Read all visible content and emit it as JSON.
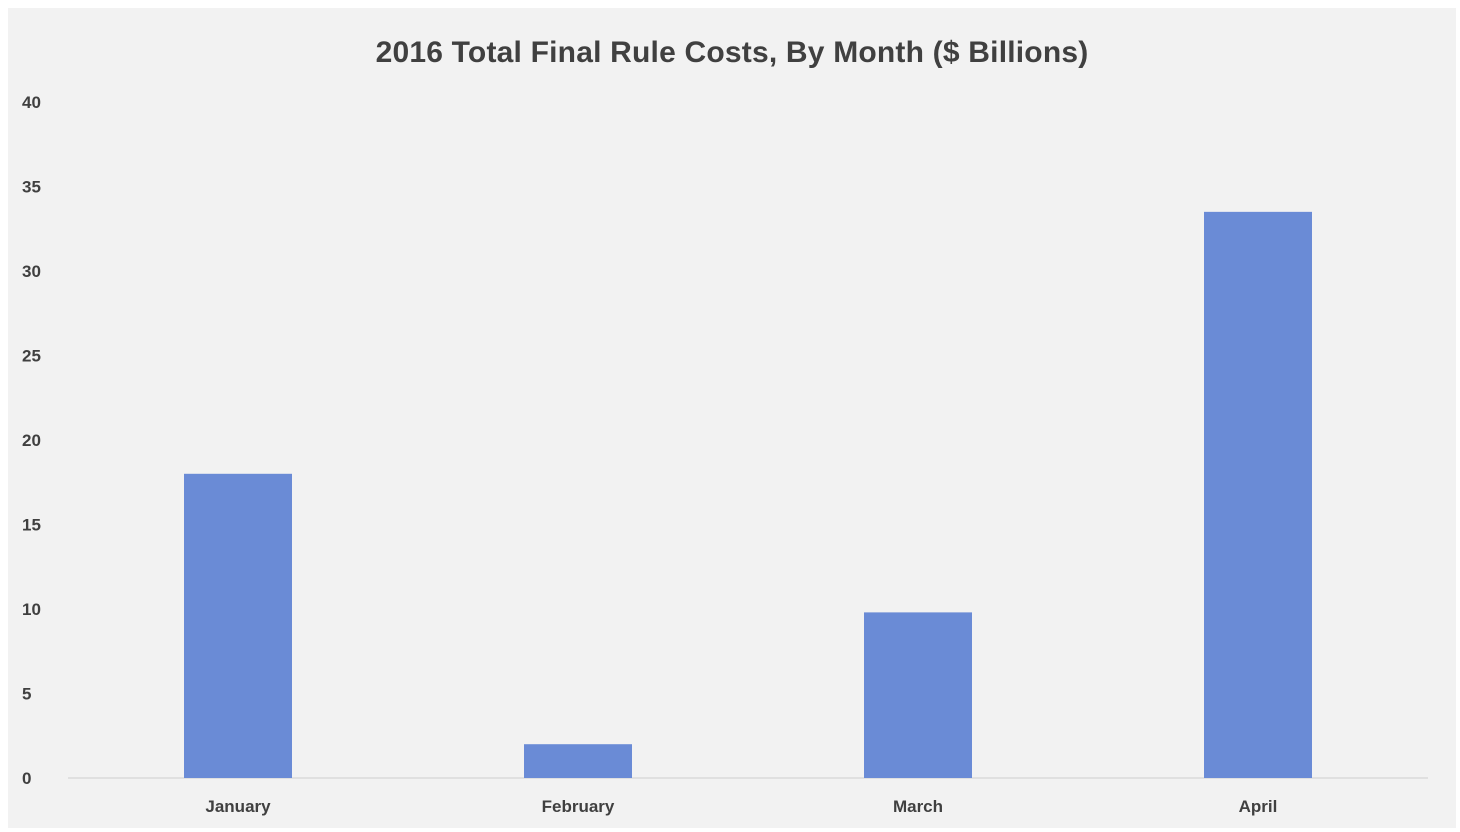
{
  "chart_data": {
    "type": "bar",
    "title": "2016 Total Final Rule Costs, By Month ($ Billions)",
    "categories": [
      "January",
      "February",
      "March",
      "April"
    ],
    "values": [
      18,
      2,
      9.8,
      33.5
    ],
    "ylim": [
      0,
      40
    ],
    "yticks": [
      0,
      5,
      10,
      15,
      20,
      25,
      30,
      35,
      40
    ],
    "xlabel": "",
    "ylabel": "",
    "grid": false,
    "legend": "none",
    "colors": {
      "bar": "#6a8bd6",
      "background": "#f2f2f2",
      "text": "#404040",
      "axis": "#d9d9d9"
    }
  }
}
